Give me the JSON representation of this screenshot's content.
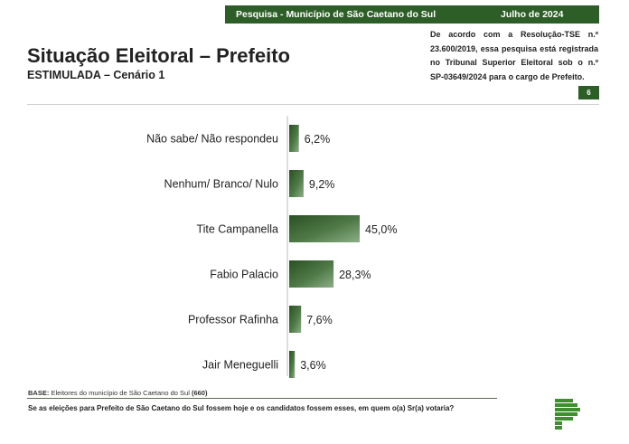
{
  "header": {
    "survey": "Pesquisa - Município de São Caetano do Sul",
    "date": "Julho de 2024",
    "page_number": "6"
  },
  "title": "Situação Eleitoral – Prefeito",
  "subtitle": "ESTIMULADA – Cenário 1",
  "legal_note": {
    "lines": [
      "De acordo com a Resolução-TSE n.º",
      "23.600/2019, essa pesquisa está registrada",
      "no Tribunal Superior Eleitoral sob o n.º",
      "SP-03649/2024 para o cargo de Prefeito."
    ]
  },
  "base": {
    "label": "BASE:",
    "text": "Eleitores do município de São Caetano do Sul",
    "count": "(660)"
  },
  "question": "Se as eleições para Prefeito de São Caetano do Sul fossem hoje e os candidatos fossem esses, em quem o(a) Sr(a) votaria?",
  "colors": {
    "brand_green": "#2e5e28",
    "bar_dark": "#2a5023",
    "bar_light": "#8dae86"
  },
  "chart_data": {
    "type": "bar",
    "orientation": "horizontal",
    "categories": [
      "Não sabe/ Não respondeu",
      "Nenhum/ Branco/ Nulo",
      "Tite Campanella",
      "Fabio Palacio",
      "Professor Rafinha",
      "Jair Meneguelli"
    ],
    "values": [
      6.2,
      9.2,
      45.0,
      28.3,
      7.6,
      3.6
    ],
    "value_labels": [
      "6,2%",
      "9,2%",
      "45,0%",
      "28,3%",
      "7,6%",
      "3,6%"
    ],
    "unit": "%",
    "xlim": [
      0,
      100
    ],
    "grid": false,
    "legend": "none"
  }
}
